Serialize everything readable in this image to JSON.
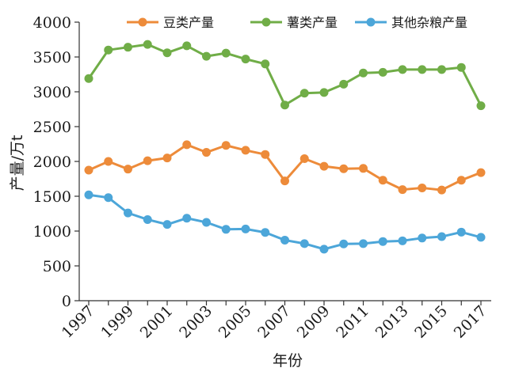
{
  "chart_data": {
    "type": "line",
    "title": "",
    "xlabel": "年份",
    "ylabel": "产量/万t",
    "x": [
      1997,
      1998,
      1999,
      2000,
      2001,
      2002,
      2003,
      2004,
      2005,
      2006,
      2007,
      2008,
      2009,
      2010,
      2011,
      2012,
      2013,
      2014,
      2015,
      2016,
      2017
    ],
    "x_tick_labels": [
      "1997",
      "1999",
      "2001",
      "2003",
      "2005",
      "2007",
      "2009",
      "2011",
      "2013",
      "2015",
      "2017"
    ],
    "y_tick_labels": [
      "0",
      "500",
      "1000",
      "1500",
      "2000",
      "2500",
      "3000",
      "3500",
      "4000"
    ],
    "ylim": [
      0,
      4000
    ],
    "grid": false,
    "legend_position": "top",
    "series": [
      {
        "name": "豆类产量",
        "color": "#ED8B3A",
        "values": [
          1875,
          2000,
          1890,
          2010,
          2050,
          2240,
          2130,
          2230,
          2160,
          2100,
          1720,
          2040,
          1930,
          1895,
          1900,
          1730,
          1595,
          1620,
          1590,
          1730,
          1840
        ]
      },
      {
        "name": "薯类产量",
        "color": "#70AD47",
        "values": [
          3190,
          3600,
          3640,
          3680,
          3560,
          3660,
          3510,
          3555,
          3470,
          3400,
          2810,
          2980,
          2990,
          3110,
          3270,
          3280,
          3320,
          3320,
          3320,
          3350,
          2800
        ]
      },
      {
        "name": "其他杂粮产量",
        "color": "#4CA6D9",
        "values": [
          1520,
          1480,
          1260,
          1165,
          1095,
          1185,
          1125,
          1025,
          1030,
          980,
          870,
          820,
          740,
          815,
          820,
          850,
          860,
          900,
          920,
          985,
          910
        ]
      }
    ]
  }
}
